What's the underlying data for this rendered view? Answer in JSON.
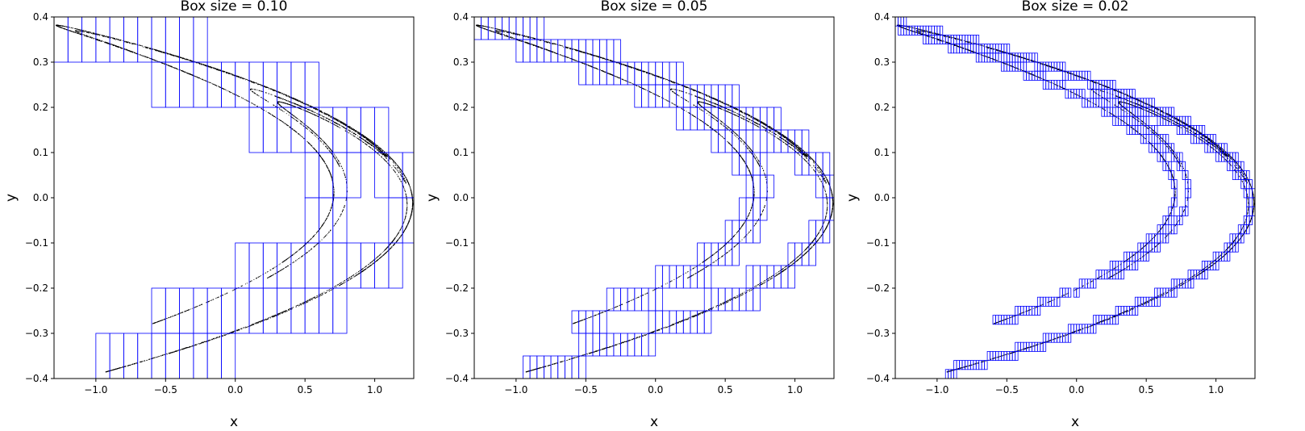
{
  "figure": {
    "panels": [
      {
        "title": "Box size = 0.10",
        "xlabel": "x",
        "ylabel": "y"
      },
      {
        "title": "Box size = 0.05",
        "xlabel": "x",
        "ylabel": "y"
      },
      {
        "title": "Box size = 0.02",
        "xlabel": "x",
        "ylabel": "y"
      }
    ]
  },
  "chart_data": [
    {
      "type": "scatter",
      "title": "Box size = 0.10",
      "xlabel": "x",
      "ylabel": "y",
      "box_size": 0.1,
      "xlim": [
        -1.3,
        1.28
      ],
      "ylim": [
        -0.4,
        0.4
      ],
      "xticks": [
        "−1.0",
        "−0.5",
        "0.0",
        "0.5",
        "1.0"
      ],
      "yticks": [
        "−0.4",
        "−0.3",
        "−0.2",
        "−0.1",
        "0.0",
        "0.1",
        "0.2",
        "0.3",
        "0.4"
      ],
      "xtick_values": [
        -1.0,
        -0.5,
        0.0,
        0.5,
        1.0
      ],
      "ytick_values": [
        -0.4,
        -0.3,
        -0.2,
        -0.1,
        0.0,
        0.1,
        0.2,
        0.3,
        0.4
      ],
      "series": [
        {
          "color": "#000000",
          "marker": "point",
          "points": "attractor"
        },
        {
          "color": "#0000ff",
          "marker": "box-outline",
          "points": "covering-boxes"
        }
      ]
    },
    {
      "type": "scatter",
      "title": "Box size = 0.05",
      "xlabel": "x",
      "ylabel": "y",
      "box_size": 0.05,
      "xlim": [
        -1.3,
        1.28
      ],
      "ylim": [
        -0.4,
        0.4
      ],
      "xticks": [
        "−1.0",
        "−0.5",
        "0.0",
        "0.5",
        "1.0"
      ],
      "yticks": [
        "−0.4",
        "−0.3",
        "−0.2",
        "−0.1",
        "0.0",
        "0.1",
        "0.2",
        "0.3",
        "0.4"
      ],
      "xtick_values": [
        -1.0,
        -0.5,
        0.0,
        0.5,
        1.0
      ],
      "ytick_values": [
        -0.4,
        -0.3,
        -0.2,
        -0.1,
        0.0,
        0.1,
        0.2,
        0.3,
        0.4
      ],
      "series": [
        {
          "color": "#000000",
          "marker": "point",
          "points": "attractor"
        },
        {
          "color": "#0000ff",
          "marker": "box-outline",
          "points": "covering-boxes"
        }
      ]
    },
    {
      "type": "scatter",
      "title": "Box size = 0.02",
      "xlabel": "x",
      "ylabel": "y",
      "box_size": 0.02,
      "xlim": [
        -1.3,
        1.28
      ],
      "ylim": [
        -0.4,
        0.4
      ],
      "xticks": [
        "−1.0",
        "−0.5",
        "0.0",
        "0.5",
        "1.0"
      ],
      "yticks": [
        "−0.4",
        "−0.3",
        "−0.2",
        "−0.1",
        "0.0",
        "0.1",
        "0.2",
        "0.3",
        "0.4"
      ],
      "xtick_values": [
        -1.0,
        -0.5,
        0.0,
        0.5,
        1.0
      ],
      "ytick_values": [
        -0.4,
        -0.3,
        -0.2,
        -0.1,
        0.0,
        0.1,
        0.2,
        0.3,
        0.4
      ],
      "series": [
        {
          "color": "#000000",
          "marker": "point",
          "points": "attractor"
        },
        {
          "color": "#0000ff",
          "marker": "box-outline",
          "points": "covering-boxes"
        }
      ]
    }
  ]
}
